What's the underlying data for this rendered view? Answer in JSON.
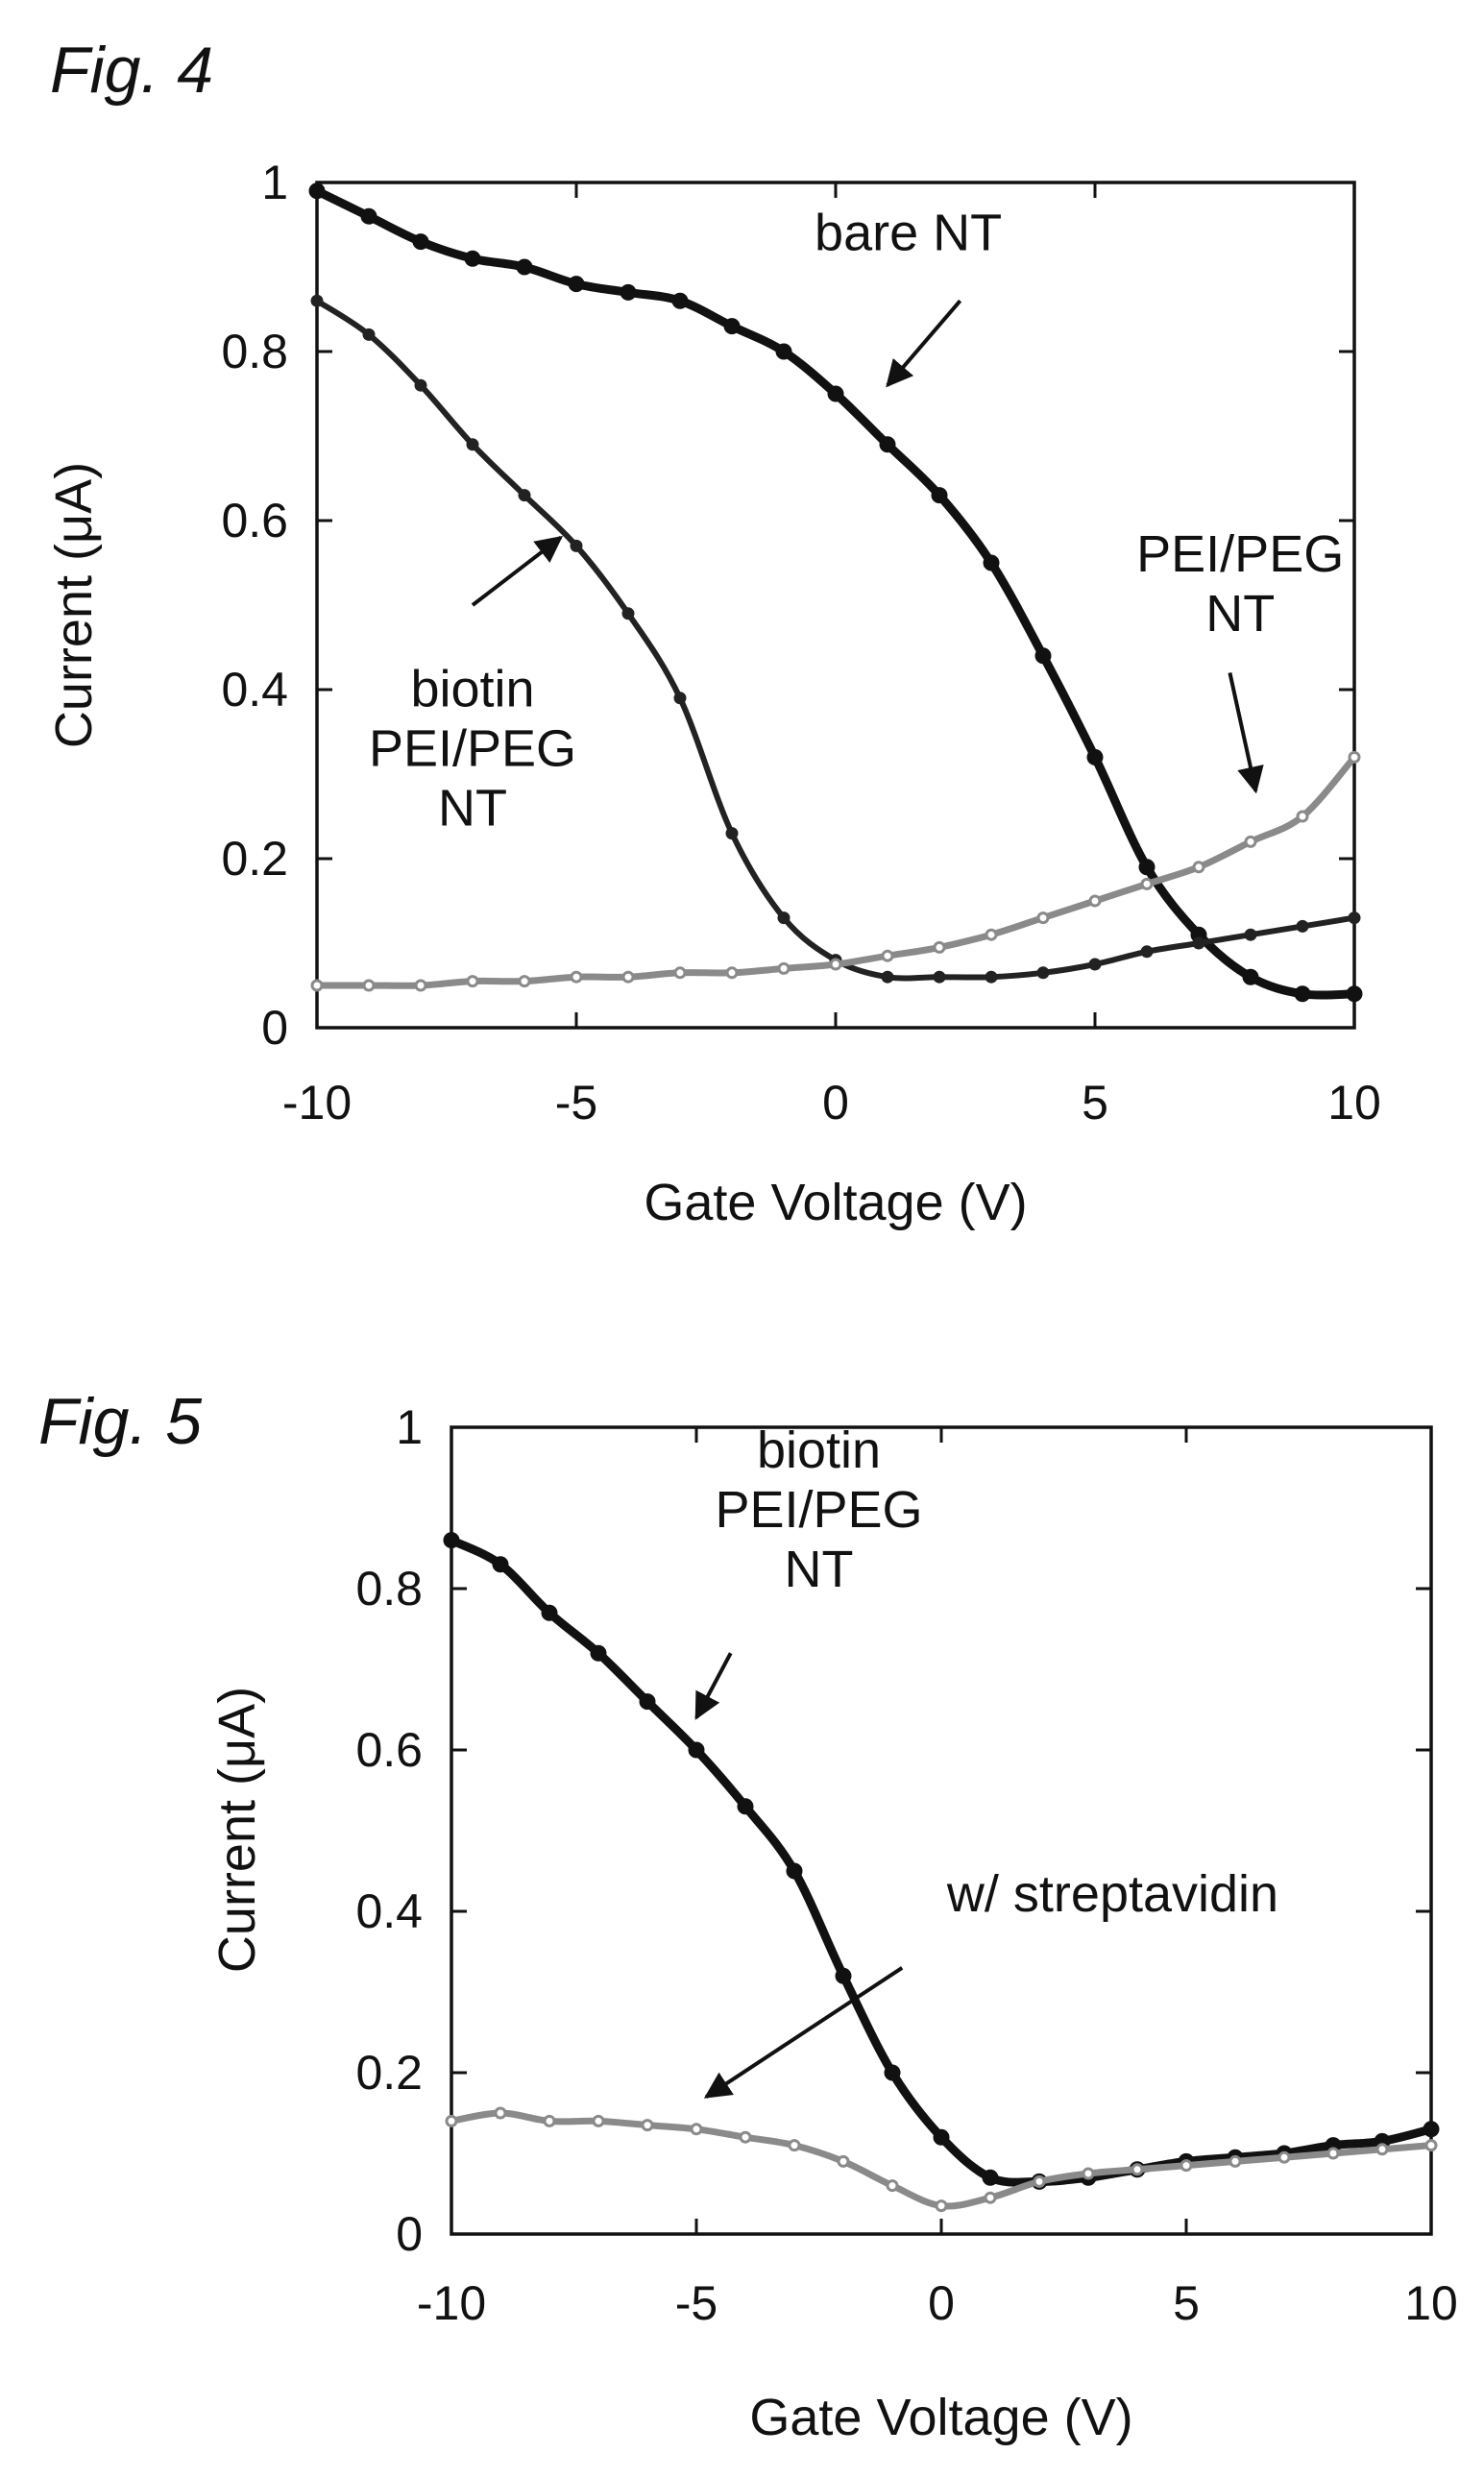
{
  "chart_data": [
    {
      "type": "line",
      "figure_label": "Fig. 4",
      "xlabel": "Gate Voltage (V)",
      "ylabel": "Current (μA)",
      "xlim": [
        -10,
        10
      ],
      "ylim": [
        0,
        1
      ],
      "xticks": [
        -10,
        -5,
        0,
        5,
        10
      ],
      "yticks": [
        0,
        0.2,
        0.4,
        0.6,
        0.8,
        1
      ],
      "grid": false,
      "series": [
        {
          "name": "bare NT",
          "style": "dark",
          "color": "#111111",
          "x": [
            -10,
            -9,
            -8,
            -7,
            -6,
            -5,
            -4,
            -3,
            -2,
            -1,
            0,
            1,
            2,
            3,
            4,
            5,
            6,
            7,
            8,
            9,
            10
          ],
          "y": [
            0.99,
            0.96,
            0.93,
            0.91,
            0.9,
            0.88,
            0.87,
            0.86,
            0.83,
            0.8,
            0.75,
            0.69,
            0.63,
            0.55,
            0.44,
            0.32,
            0.19,
            0.11,
            0.06,
            0.04,
            0.04
          ]
        },
        {
          "name": "biotin PEI/PEG NT",
          "style": "dark-thin",
          "color": "#222222",
          "x": [
            -10,
            -9,
            -8,
            -7,
            -6,
            -5,
            -4,
            -3,
            -2,
            -1,
            0,
            1,
            2,
            3,
            4,
            5,
            6,
            7,
            8,
            9,
            10
          ],
          "y": [
            0.86,
            0.82,
            0.76,
            0.69,
            0.63,
            0.57,
            0.49,
            0.39,
            0.23,
            0.13,
            0.08,
            0.06,
            0.06,
            0.06,
            0.065,
            0.075,
            0.09,
            0.1,
            0.11,
            0.12,
            0.13
          ]
        },
        {
          "name": "PEI/PEG NT",
          "style": "light",
          "color": "#8a8a8a",
          "x": [
            -10,
            -9,
            -8,
            -7,
            -6,
            -5,
            -4,
            -3,
            -2,
            -1,
            0,
            1,
            2,
            3,
            4,
            5,
            6,
            7,
            8,
            9,
            10
          ],
          "y": [
            0.05,
            0.05,
            0.05,
            0.055,
            0.055,
            0.06,
            0.06,
            0.065,
            0.065,
            0.07,
            0.075,
            0.085,
            0.095,
            0.11,
            0.13,
            0.15,
            0.17,
            0.19,
            0.22,
            0.25,
            0.32
          ]
        }
      ],
      "annotations": [
        {
          "lines": [
            "bare NT"
          ],
          "at": [
            1.4,
            0.92
          ],
          "arrow_from": [
            2.4,
            0.86
          ],
          "arrow_to": [
            1.0,
            0.76
          ]
        },
        {
          "lines": [
            "PEI/PEG",
            "NT"
          ],
          "at": [
            7.8,
            0.54
          ],
          "arrow_from": [
            7.6,
            0.42
          ],
          "arrow_to": [
            8.1,
            0.28
          ]
        },
        {
          "lines": [
            "biotin",
            "PEI/PEG",
            "NT"
          ],
          "at": [
            -7.0,
            0.38
          ],
          "arrow_from": [
            -7.0,
            0.5
          ],
          "arrow_to": [
            -5.3,
            0.58
          ]
        }
      ]
    },
    {
      "type": "line",
      "figure_label": "Fig. 5",
      "xlabel": "Gate Voltage (V)",
      "ylabel": "Current (μA)",
      "xlim": [
        -10,
        10
      ],
      "ylim": [
        0,
        1
      ],
      "xticks": [
        -10,
        -5,
        0,
        5,
        10
      ],
      "yticks": [
        0,
        0.2,
        0.4,
        0.6,
        0.8,
        1
      ],
      "grid": false,
      "series": [
        {
          "name": "biotin PEI/PEG NT",
          "style": "dark",
          "color": "#111111",
          "x": [
            -10,
            -9,
            -8,
            -7,
            -6,
            -5,
            -4,
            -3,
            -2,
            -1,
            0,
            1,
            2,
            3,
            4,
            5,
            6,
            7,
            8,
            9,
            10
          ],
          "y": [
            0.86,
            0.83,
            0.77,
            0.72,
            0.66,
            0.6,
            0.53,
            0.45,
            0.32,
            0.2,
            0.12,
            0.07,
            0.065,
            0.07,
            0.08,
            0.09,
            0.095,
            0.1,
            0.11,
            0.115,
            0.13
          ]
        },
        {
          "name": "w/ streptavidin",
          "style": "light",
          "color": "#8a8a8a",
          "x": [
            -10,
            -9,
            -8,
            -7,
            -6,
            -5,
            -4,
            -3,
            -2,
            -1,
            0,
            1,
            2,
            3,
            4,
            5,
            6,
            7,
            8,
            9,
            10
          ],
          "y": [
            0.14,
            0.15,
            0.14,
            0.14,
            0.135,
            0.13,
            0.12,
            0.11,
            0.09,
            0.06,
            0.035,
            0.045,
            0.065,
            0.075,
            0.08,
            0.085,
            0.09,
            0.095,
            0.1,
            0.105,
            0.11
          ]
        }
      ],
      "annotations": [
        {
          "lines": [
            "biotin",
            "PEI/PEG",
            "NT"
          ],
          "at": [
            -2.5,
            0.95
          ],
          "arrow_from": [
            -4.3,
            0.72
          ],
          "arrow_to": [
            -5.0,
            0.64
          ]
        },
        {
          "lines": [
            "w/ streptavidin"
          ],
          "at": [
            3.5,
            0.4
          ],
          "arrow_from": [
            -0.8,
            0.33
          ],
          "arrow_to": [
            -4.8,
            0.17
          ]
        }
      ]
    }
  ]
}
